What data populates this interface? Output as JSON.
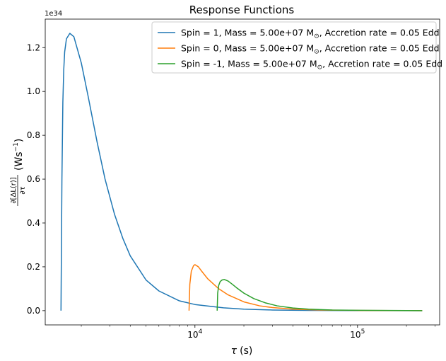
{
  "chart_data": {
    "type": "line",
    "title": "Response Functions",
    "xlabel_symbol": "τ",
    "xlabel_unit": "(s)",
    "ylabel_numerator": "∂[ΔL(r)]",
    "ylabel_denominator": "∂τ",
    "ylabel_unit": "(Ws",
    "ylabel_unit_exp": "−1",
    "ylabel_unit_close": ")",
    "y_offset_text": "1e34",
    "x_scale": "log",
    "xlim": [
      1200,
      320000
    ],
    "ylim": [
      -0.065,
      1.33
    ],
    "x_major_ticks": [
      {
        "value": 10000,
        "base": "10",
        "exp": "4"
      },
      {
        "value": 100000,
        "base": "10",
        "exp": "5"
      }
    ],
    "y_ticks": [
      0.0,
      0.2,
      0.4,
      0.6,
      0.8,
      1.0,
      1.2
    ],
    "y_tick_labels": [
      "0.0",
      "0.2",
      "0.4",
      "0.6",
      "0.8",
      "1.0",
      "1.2"
    ],
    "grid": false,
    "legend_position": "upper right",
    "series": [
      {
        "name": "Spin =  1, Mass = 5.00e+07 M",
        "name_suffix": ", Accretion rate = 0.05 Edd",
        "color": "#1f77b4",
        "x": [
          1500,
          1520,
          1540,
          1560,
          1580,
          1620,
          1700,
          1800,
          2000,
          2200,
          2500,
          2800,
          3200,
          3600,
          4000,
          5000,
          6000,
          8000,
          10000,
          15000,
          20000,
          30000,
          50000,
          100000,
          250000
        ],
        "y": [
          0.0,
          0.6,
          0.95,
          1.1,
          1.18,
          1.24,
          1.265,
          1.25,
          1.13,
          0.98,
          0.77,
          0.6,
          0.44,
          0.33,
          0.25,
          0.14,
          0.09,
          0.045,
          0.028,
          0.013,
          0.007,
          0.003,
          0.001,
          0.0002,
          0.0
        ]
      },
      {
        "name": "Spin =  0, Mass = 5.00e+07 M",
        "name_suffix": ", Accretion rate = 0.05 Edd",
        "color": "#ff7f0e",
        "x": [
          9200,
          9300,
          9500,
          9800,
          10000,
          10500,
          11000,
          12000,
          14000,
          16000,
          20000,
          25000,
          30000,
          40000,
          60000,
          100000,
          250000
        ],
        "y": [
          0.0,
          0.12,
          0.18,
          0.205,
          0.21,
          0.2,
          0.18,
          0.145,
          0.1,
          0.072,
          0.04,
          0.022,
          0.014,
          0.007,
          0.003,
          0.001,
          0.0
        ]
      },
      {
        "name": "Spin = -1, Mass = 5.00e+07 M",
        "name_suffix": ", Accretion rate = 0.05 Edd",
        "color": "#2ca02c",
        "x": [
          13700,
          13800,
          14000,
          14300,
          14700,
          15200,
          16000,
          17000,
          18000,
          20000,
          23000,
          27000,
          32000,
          40000,
          50000,
          70000,
          100000,
          250000
        ],
        "y": [
          0.0,
          0.08,
          0.115,
          0.133,
          0.14,
          0.142,
          0.135,
          0.12,
          0.105,
          0.08,
          0.055,
          0.036,
          0.022,
          0.012,
          0.007,
          0.003,
          0.0015,
          0.0
        ]
      }
    ]
  }
}
